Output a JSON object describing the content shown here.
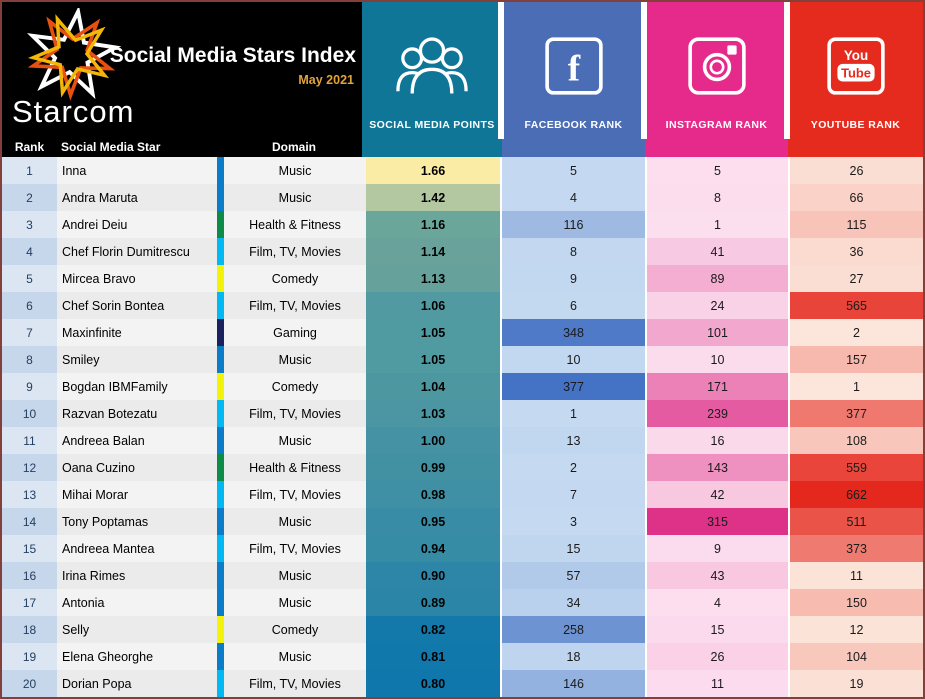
{
  "header": {
    "brand": "Starcom",
    "title": "Social Media Stars Index",
    "subtitle": "May 2021"
  },
  "platform_colors": {
    "points": "#0F7697",
    "facebook": "#4A6DB5",
    "instagram": "#E62A8B",
    "youtube": "#E52B1E"
  },
  "domain_colors": {
    "Music": "#0B7DC8",
    "Health & Fitness": "#0D8B47",
    "Film, TV, Movies": "#00B9F2",
    "Comedy": "#F2F20A",
    "Gaming": "#1A2260"
  },
  "chart_data": {
    "type": "table",
    "title": "Social Media Stars Index",
    "subtitle": "May 2021",
    "heatmap": true,
    "columns": [
      "Rank",
      "Social Media Star",
      "Domain",
      "SOCIAL MEDIA POINTS",
      "FACEBOOK RANK",
      "INSTAGRAM RANK",
      "YOUTUBE RANK"
    ],
    "rows": [
      {
        "rank": 1,
        "star": "Inna",
        "domain": "Music",
        "points": "1.66",
        "fb": 5,
        "ig": 5,
        "yt": 26,
        "colors": {
          "points": "#FAECA4",
          "fb": "#C4D9F1",
          "ig": "#FCDEEE",
          "yt": "#FBDED3"
        }
      },
      {
        "rank": 2,
        "star": "Andra Maruta",
        "domain": "Music",
        "points": "1.42",
        "fb": 4,
        "ig": 8,
        "yt": 66,
        "colors": {
          "points": "#B3C8A0",
          "fb": "#C4D9F1",
          "ig": "#FBDDEE",
          "yt": "#FAD2C7"
        }
      },
      {
        "rank": 3,
        "star": "Andrei Deiu",
        "domain": "Health & Fitness",
        "points": "1.16",
        "fb": 116,
        "ig": 1,
        "yt": 115,
        "colors": {
          "points": "#6BA69A",
          "fb": "#9EBAE3",
          "ig": "#FCDFEF",
          "yt": "#F8C4B9"
        }
      },
      {
        "rank": 4,
        "star": "Chef Florin Dumitrescu",
        "domain": "Film, TV, Movies",
        "points": "1.14",
        "fb": 8,
        "ig": 41,
        "yt": 36,
        "colors": {
          "points": "#68A29B",
          "fb": "#C3D8F0",
          "ig": "#F8C9E2",
          "yt": "#FBDBD0"
        }
      },
      {
        "rank": 5,
        "star": "Mircea Bravo",
        "domain": "Comedy",
        "points": "1.13",
        "fb": 9,
        "ig": 89,
        "yt": 27,
        "colors": {
          "points": "#66A19C",
          "fb": "#C2D8F0",
          "ig": "#F4AED2",
          "yt": "#FBDED3"
        }
      },
      {
        "rank": 6,
        "star": "Chef Sorin Bontea",
        "domain": "Film, TV, Movies",
        "points": "1.06",
        "fb": 6,
        "ig": 24,
        "yt": 565,
        "colors": {
          "points": "#529AA1",
          "fb": "#C3D9F0",
          "ig": "#FAD2E7",
          "yt": "#E84439"
        }
      },
      {
        "rank": 7,
        "star": "Maxinfinite",
        "domain": "Gaming",
        "points": "1.05",
        "fb": 348,
        "ig": 101,
        "yt": 2,
        "colors": {
          "points": "#509AA1",
          "fb": "#4E7AC7",
          "ig": "#F2A8CE",
          "yt": "#FCE5DA"
        }
      },
      {
        "rank": 8,
        "star": "Smiley",
        "domain": "Music",
        "points": "1.05",
        "fb": 10,
        "ig": 10,
        "yt": 157,
        "colors": {
          "points": "#509AA1",
          "fb": "#C2D8F0",
          "ig": "#FBDCED",
          "yt": "#F7B8AD"
        }
      },
      {
        "rank": 9,
        "star": "Bogdan IBMFamily",
        "domain": "Comedy",
        "points": "1.04",
        "fb": 377,
        "ig": 171,
        "yt": 1,
        "colors": {
          "points": "#4D97A1",
          "fb": "#4472C4",
          "ig": "#EC81B7",
          "yt": "#FCE5DA"
        }
      },
      {
        "rank": 10,
        "star": "Razvan Botezatu",
        "domain": "Film, TV, Movies",
        "points": "1.03",
        "fb": 1,
        "ig": 239,
        "yt": 377,
        "colors": {
          "points": "#4B96A2",
          "fb": "#C5DAF1",
          "ig": "#E55BA1",
          "yt": "#EF796E"
        }
      },
      {
        "rank": 11,
        "star": "Andreea Balan",
        "domain": "Music",
        "points": "1.00",
        "fb": 13,
        "ig": 16,
        "yt": 108,
        "colors": {
          "points": "#4492A3",
          "fb": "#C1D7F0",
          "ig": "#FAD9EB",
          "yt": "#F8C6BB"
        }
      },
      {
        "rank": 12,
        "star": "Oana Cuzino",
        "domain": "Health & Fitness",
        "points": "0.99",
        "fb": 2,
        "ig": 143,
        "yt": 559,
        "colors": {
          "points": "#4191A3",
          "fb": "#C5DAF1",
          "ig": "#EE90C0",
          "yt": "#E9453A"
        }
      },
      {
        "rank": 13,
        "star": "Mihai Morar",
        "domain": "Film, TV, Movies",
        "points": "0.98",
        "fb": 7,
        "ig": 42,
        "yt": 662,
        "colors": {
          "points": "#3F90A4",
          "fb": "#C4D9F1",
          "ig": "#F8C8E1",
          "yt": "#E5281D"
        }
      },
      {
        "rank": 14,
        "star": "Tony Poptamas",
        "domain": "Music",
        "points": "0.95",
        "fb": 3,
        "ig": 315,
        "yt": 511,
        "colors": {
          "points": "#388CA5",
          "fb": "#C5DAF1",
          "ig": "#DE3188",
          "yt": "#EA5348"
        }
      },
      {
        "rank": 15,
        "star": "Andreea Mantea",
        "domain": "Film, TV, Movies",
        "points": "0.94",
        "fb": 15,
        "ig": 9,
        "yt": 373,
        "colors": {
          "points": "#368BA5",
          "fb": "#C0D6EF",
          "ig": "#FBDCEE",
          "yt": "#EF7B70"
        }
      },
      {
        "rank": 16,
        "star": "Irina Rimes",
        "domain": "Music",
        "points": "0.90",
        "fb": 57,
        "ig": 43,
        "yt": 11,
        "colors": {
          "points": "#2D86A7",
          "fb": "#B2CAEA",
          "ig": "#F8C8E1",
          "yt": "#FCE3D8"
        }
      },
      {
        "rank": 17,
        "star": "Antonia",
        "domain": "Music",
        "points": "0.89",
        "fb": 34,
        "ig": 4,
        "yt": 150,
        "colors": {
          "points": "#2B85A7",
          "fb": "#BAD1ED",
          "ig": "#FCDEEF",
          "yt": "#F7BBAF"
        }
      },
      {
        "rank": 18,
        "star": "Selly",
        "domain": "Comedy",
        "points": "0.82",
        "fb": 258,
        "ig": 15,
        "yt": 12,
        "colors": {
          "points": "#1379AB",
          "fb": "#6D93D2",
          "ig": "#FADAEC",
          "yt": "#FCE3D8"
        }
      },
      {
        "rank": 19,
        "star": "Elena Gheorghe",
        "domain": "Music",
        "points": "0.81",
        "fb": 18,
        "ig": 26,
        "yt": 104,
        "colors": {
          "points": "#1178AB",
          "fb": "#BFD5EF",
          "ig": "#FAD1E6",
          "yt": "#F8C8BD"
        }
      },
      {
        "rank": 20,
        "star": "Dorian Popa",
        "domain": "Film, TV, Movies",
        "points": "0.80",
        "fb": 146,
        "ig": 11,
        "yt": 19,
        "colors": {
          "points": "#0F77AC",
          "fb": "#93B2E0",
          "ig": "#FBDBED",
          "yt": "#FBE0D5"
        }
      }
    ]
  }
}
